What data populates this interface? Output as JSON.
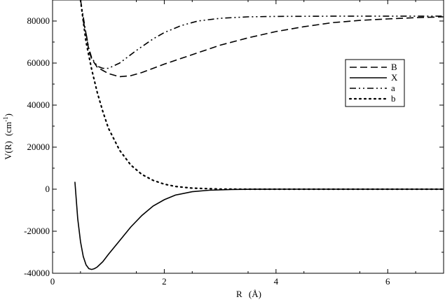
{
  "chart_data": {
    "type": "line",
    "xlabel": "R",
    "xlabel_unit": "Å",
    "ylabel": "V(R)",
    "ylabel_unit_base": "cm",
    "ylabel_unit_exp": "-1",
    "xlim": [
      0,
      7
    ],
    "ylim": [
      -40000,
      90000
    ],
    "x_ticks": [
      0,
      2,
      4,
      6
    ],
    "x_tick_labels": [
      "0",
      "2",
      "4",
      "6"
    ],
    "y_ticks": [
      -40000,
      -20000,
      0,
      20000,
      40000,
      60000,
      80000
    ],
    "y_tick_labels": [
      "-40000",
      "-20000",
      "0",
      "20000",
      "40000",
      "60000",
      "80000"
    ],
    "grid": false,
    "legend_position": "right",
    "series": [
      {
        "name": "B",
        "style": "dashed",
        "x": [
          0.55,
          0.6,
          0.65,
          0.7,
          0.8,
          0.9,
          1.0,
          1.2,
          1.4,
          1.6,
          1.8,
          2.0,
          2.5,
          3.0,
          3.5,
          4.0,
          4.5,
          5.0,
          5.5,
          6.0,
          6.5,
          7.0
        ],
        "y": [
          80000,
          74000,
          66000,
          62000,
          58000,
          56500,
          55000,
          53500,
          54000,
          55500,
          57500,
          59500,
          64000,
          68500,
          72000,
          75000,
          77300,
          79200,
          80300,
          81000,
          81600,
          82000
        ]
      },
      {
        "name": "X",
        "style": "solid",
        "x": [
          0.4,
          0.45,
          0.5,
          0.55,
          0.6,
          0.65,
          0.7,
          0.75,
          0.8,
          0.9,
          1.0,
          1.2,
          1.4,
          1.6,
          1.8,
          2.0,
          2.2,
          2.5,
          2.8,
          3.2,
          3.6,
          4.0,
          5.0,
          6.0,
          7.0
        ],
        "y": [
          3500,
          -14000,
          -25000,
          -32000,
          -36000,
          -37800,
          -38200,
          -37800,
          -37000,
          -34500,
          -31000,
          -24500,
          -18000,
          -12500,
          -8000,
          -5000,
          -2800,
          -1200,
          -500,
          -150,
          -50,
          0,
          0,
          0,
          0
        ]
      },
      {
        "name": "a",
        "style": "dashdotdot",
        "x": [
          0.5,
          0.55,
          0.6,
          0.65,
          0.7,
          0.8,
          0.9,
          1.0,
          1.2,
          1.5,
          1.8,
          2.0,
          2.3,
          2.6,
          3.0,
          3.5,
          4.0,
          5.0,
          6.0,
          7.0
        ],
        "y": [
          90000,
          82000,
          74000,
          67000,
          62500,
          58500,
          57500,
          57500,
          60000,
          66000,
          71500,
          74500,
          77800,
          80000,
          81300,
          82000,
          82200,
          82300,
          82300,
          82300
        ]
      },
      {
        "name": "b",
        "style": "dotted",
        "x": [
          0.5,
          0.55,
          0.6,
          0.7,
          0.8,
          0.9,
          1.0,
          1.2,
          1.4,
          1.6,
          1.8,
          2.0,
          2.2,
          2.5,
          3.0,
          3.5,
          4.0,
          5.0,
          6.0,
          7.0
        ],
        "y": [
          90000,
          80000,
          70000,
          57000,
          46000,
          37000,
          29000,
          18500,
          11500,
          7000,
          4200,
          2400,
          1300,
          500,
          80,
          10,
          0,
          0,
          0,
          0
        ]
      }
    ]
  }
}
